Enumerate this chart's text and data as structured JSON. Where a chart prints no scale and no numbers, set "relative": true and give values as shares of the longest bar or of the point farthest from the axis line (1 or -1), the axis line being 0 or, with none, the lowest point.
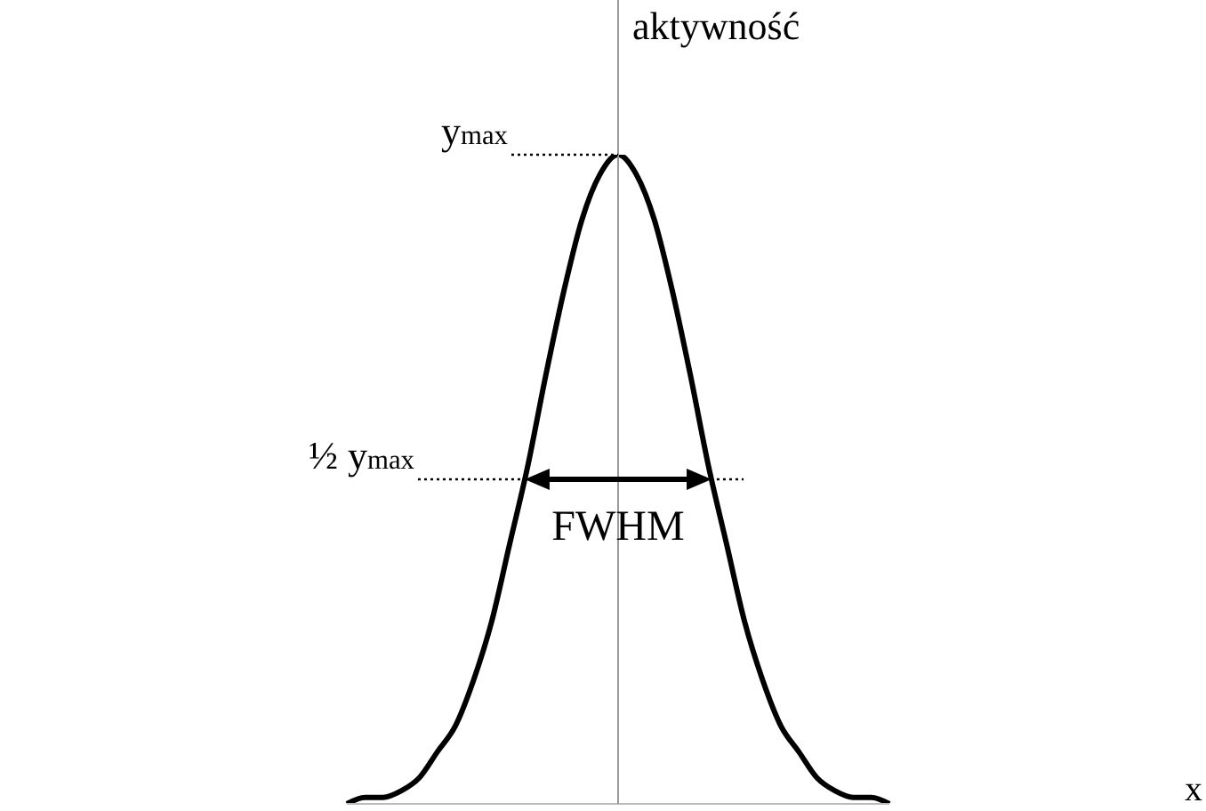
{
  "chart_data": {
    "type": "line",
    "relative": true,
    "ylabel": "aktywność",
    "categories": [
      null,
      null,
      null,
      null,
      null,
      null,
      null,
      null,
      null,
      null,
      null,
      null,
      null,
      null,
      null,
      null,
      null,
      null,
      null,
      null,
      null,
      null,
      null,
      null,
      null,
      null,
      null,
      null,
      null,
      null,
      null
    ],
    "series": [
      {
        "color": "#000000",
        "values": [
          0,
          0.01,
          0.01,
          0.02,
          0.04,
          0.08,
          0.12,
          0.19,
          0.28,
          0.4,
          0.52,
          0.66,
          0.79,
          0.9,
          0.97,
          1,
          0.97,
          0.9,
          0.79,
          0.66,
          0.52,
          0.4,
          0.28,
          0.19,
          0.12,
          0.08,
          0.04,
          0.02,
          0.01,
          0.01,
          0
        ]
      }
    ],
    "ref_lines": [
      {
        "axis": "y",
        "value": 1,
        "label": "y$_{max}$",
        "line_style": "dotted"
      },
      {
        "axis": "y",
        "value": 0.5,
        "label": "½ y$_{max}$",
        "line_style": "dotted"
      }
    ],
    "annotations": [
      {
        "text": "FWHM",
        "y": 0.5
      },
      "x"
    ]
  }
}
